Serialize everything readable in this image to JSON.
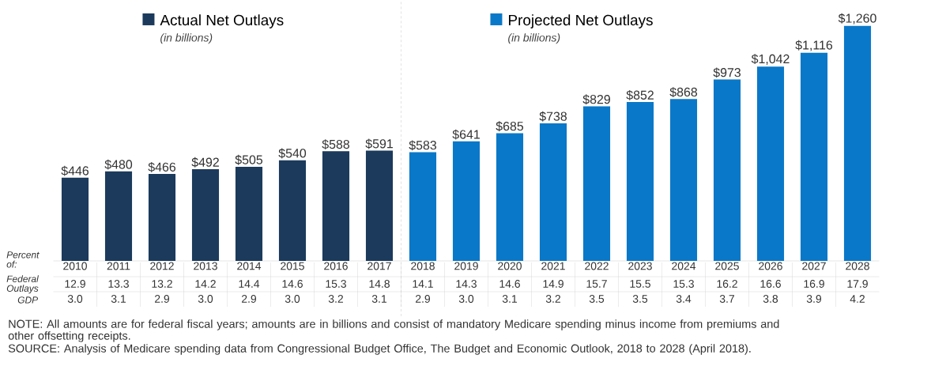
{
  "chart_data": {
    "type": "bar",
    "categories": [
      "2010",
      "2011",
      "2012",
      "2013",
      "2014",
      "2015",
      "2016",
      "2017",
      "2018",
      "2019",
      "2020",
      "2021",
      "2022",
      "2023",
      "2024",
      "2025",
      "2026",
      "2027",
      "2028"
    ],
    "series": [
      {
        "name": "Actual Net Outlays",
        "color": "#1b3a5c",
        "values": [
          446,
          480,
          466,
          492,
          505,
          540,
          588,
          591,
          null,
          null,
          null,
          null,
          null,
          null,
          null,
          null,
          null,
          null,
          null
        ],
        "value_labels": [
          "$446",
          "$480",
          "$466",
          "$492",
          "$505",
          "$540",
          "$588",
          "$591",
          null,
          null,
          null,
          null,
          null,
          null,
          null,
          null,
          null,
          null,
          null
        ]
      },
      {
        "name": "Projected Net Outlays",
        "color": "#0a78c8",
        "values": [
          null,
          null,
          null,
          null,
          null,
          null,
          null,
          null,
          583,
          641,
          685,
          738,
          829,
          852,
          868,
          973,
          1042,
          1116,
          1260
        ],
        "value_labels": [
          null,
          null,
          null,
          null,
          null,
          null,
          null,
          null,
          "$583",
          "$641",
          "$685",
          "$738",
          "$829",
          "$852",
          "$868",
          "$973",
          "$1,042",
          "$1,116",
          "$1,260"
        ]
      }
    ],
    "legend": "top",
    "annotations": [
      "(in billions)",
      "(in billions)",
      "Percent of:",
      "Federal Outlays",
      "GDP",
      "NOTE: All amounts are for federal fiscal years; amounts are in billions and consist of mandatory Medicare spending minus income from premiums and other offsetting receipts.",
      "SOURCE: Analysis of Medicare spending data from Congressional Budget Office, The Budget and Economic Outlook, 2018 to 2028 (April 2018).",
      "12.9",
      "13.3",
      "13.2",
      "14.2",
      "14.4",
      "14.6",
      "15.3",
      "14.8",
      "14.1",
      "14.3",
      "14.6",
      "14.9",
      "15.7",
      "15.5",
      "15.3",
      "16.2",
      "16.6",
      "16.9",
      "17.9",
      "3.0",
      "3.1",
      "2.9",
      "3.0",
      "2.9",
      "3.0",
      "3.2",
      "3.1",
      "2.9",
      "3.0",
      "3.1",
      "3.2",
      "3.5",
      "3.5",
      "3.4",
      "3.7",
      "3.8",
      "3.9",
      "4.2"
    ]
  }
}
